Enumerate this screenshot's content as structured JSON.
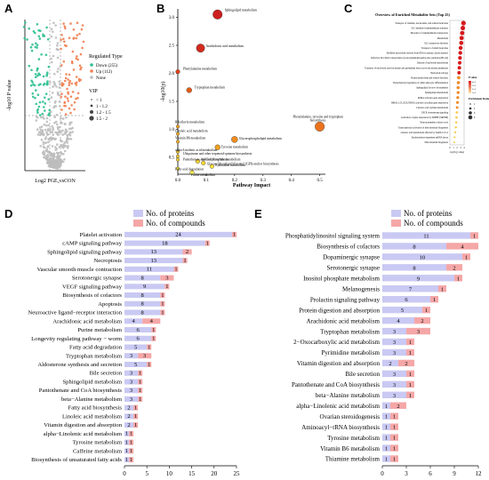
{
  "labels": {
    "a": "A",
    "b": "B",
    "c": "C",
    "d": "D",
    "e": "E"
  },
  "chart_data": [
    {
      "panel": "A",
      "type": "scatter",
      "xlabel": "Log2 PGE₂vsCON",
      "ylabel": "-log10 P value",
      "legend_title": "Regulated Type",
      "legend_items": [
        "Down (255)",
        "Up (112)",
        "None"
      ],
      "vip_title": "VIP",
      "vip_items": [
        "< 1",
        "1 - 1.2",
        "1.2 - 1.5",
        "1.5 - 2"
      ],
      "colors": {
        "down": "#2ebf91",
        "up": "#f07f50",
        "none": "#bdbdbd"
      }
    },
    {
      "panel": "B",
      "type": "scatter",
      "xlabel": "Pathway Impact",
      "ylabel": "-log10(p)",
      "xticks": [
        "0.0",
        "0.1",
        "0.2",
        "0.3",
        "0.4",
        "0.5"
      ],
      "yticks": [
        "0.5",
        "1.0",
        "1.5",
        "2.0",
        "2.5",
        "3.0"
      ],
      "xlim": [
        0,
        0.52
      ],
      "ylim": [
        0.2,
        3.15
      ],
      "points": [
        {
          "label": "Sphingolipid metabolism",
          "x": 0.14,
          "y": 3.05,
          "size": 9,
          "color": "#cc1f1f"
        },
        {
          "label": "Arachidonic acid metabolism",
          "x": 0.08,
          "y": 2.45,
          "size": 8,
          "color": "#d22a1f"
        },
        {
          "label": "Phenylalanine metabolism",
          "x": 0.0,
          "y": 2.03,
          "size": 4,
          "color": "#e2441a"
        },
        {
          "label": "Tryptophan metabolism",
          "x": 0.04,
          "y": 1.7,
          "size": 5,
          "color": "#e35a17"
        },
        {
          "label": "Riboflavin metabolism",
          "x": 0.0,
          "y": 1.05,
          "size": 3,
          "color": "#f1a11c"
        },
        {
          "label": "Linoleic acid metabolism",
          "x": 0.0,
          "y": 0.92,
          "size": 3,
          "color": "#f3ad1e"
        },
        {
          "label": "Vitamin B6 metabolism",
          "x": 0.0,
          "y": 0.78,
          "size": 3,
          "color": "#f3b321"
        },
        {
          "label": "Glycerophospholipid metabolism",
          "x": 0.2,
          "y": 0.82,
          "size": 6,
          "color": "#ef8c1f"
        },
        {
          "label": "Tyrosine metabolism",
          "x": 0.14,
          "y": 0.68,
          "size": 5,
          "color": "#f1a01f"
        },
        {
          "label": "Phenylalanine, tyrosine and tryptophan biosynthesis",
          "x": 0.5,
          "y": 1.05,
          "size": 9,
          "color": "#ea731d"
        },
        {
          "label": "alpha-Linolenic acid metabolism",
          "x": 0.0,
          "y": 0.6,
          "size": 3,
          "color": "#f7c52a"
        },
        {
          "label": "Ubiquinone and other terpenoid-quinone biosynthesis",
          "x": 0.0,
          "y": 0.52,
          "size": 3,
          "color": "#f8cb2e"
        },
        {
          "label": "Pantothenate and CoA biosynthesis",
          "x": 0.0,
          "y": 0.46,
          "size": 3,
          "color": "#f8cf30"
        },
        {
          "label": "Inositol phosphate metabolism",
          "x": 0.07,
          "y": 0.43,
          "size": 4,
          "color": "#f9d332"
        },
        {
          "label": "Glycosylphosphatidylinositol (GPI)-anchor biosynthesis",
          "x": 0.09,
          "y": 0.4,
          "size": 4,
          "color": "#fad735"
        },
        {
          "label": "Pyrimidine metabolism",
          "x": 0.12,
          "y": 0.34,
          "size": 4,
          "color": "#fbe03c"
        },
        {
          "label": "Fatty acid degradation",
          "x": 0.0,
          "y": 0.3,
          "size": 3,
          "color": "#fbe440"
        },
        {
          "label": "Purine metabolism",
          "x": 0.05,
          "y": 0.23,
          "size": 4,
          "color": "#fcec55"
        }
      ]
    },
    {
      "panel": "C",
      "type": "scatter",
      "title": "Overview of Enriched Metabolite Sets (Top 25)",
      "legend_p": "P value",
      "legend_p_items": [
        "4e-2",
        "3e-2",
        "2e-2",
        "1e-2"
      ],
      "legend_ratio": "Enrichment Ratio",
      "legend_ratio_items": [
        "2",
        "4",
        "6",
        "8"
      ],
      "xlabel": "log10 (p value)",
      "xticks": [
        "0",
        "1",
        "2",
        "3",
        "4"
      ],
      "categories": [
        "Transport of vitamins, nucleosides, and related molecules",
        "SLC-mediated transmembrane transport",
        "Disorders of transmembrane transporters",
        "Metabolism",
        "SLC transporter disorders",
        "Transport of small molecules",
        "Modified nucleotides derived from RNA in urinary cancer markers",
        "Defective SLC29A3 causes histiocytosis-lymphadenopathy plus syndrome (HLAS)",
        "Disease of nucleotide metabolism",
        "Transport of nucleotide and free purine and pyrimidine bases across the plasma membrane",
        "Nucleotide salvage",
        "Purine metabolism and related disorders",
        "Transcriptional regulation of white adipocyte differentiation",
        "Sphingolipid de novo biosynthesis",
        "Sphingolipid metabolism",
        "RORA activates gene expression",
        "BMAL1:CLOCK,NPAS2 activates circadian gene expression",
        "Linoleic acid oxylipin metabolism",
        "GPCR downstream signaling",
        "Activation of gene expression by SREBF (SREBP)",
        "Neurotransmitter release cycle",
        "Transcriptional activation of mitochondrial biogenesis",
        "Linoleic acid metabolism affected by SARS-CoV-2",
        "Deadenylation-dependent mRNA decay",
        "Mitochondrial biogenesis"
      ],
      "values": [
        4.3,
        4.1,
        3.9,
        3.7,
        3.6,
        3.4,
        3.3,
        3.2,
        3.1,
        3.0,
        2.9,
        2.8,
        2.7,
        2.6,
        2.6,
        2.5,
        2.4,
        2.3,
        2.2,
        2.1,
        2.0,
        1.9,
        1.7,
        1.5,
        1.4
      ]
    },
    {
      "panel": "D",
      "type": "bar",
      "orientation": "horizontal",
      "stacked": true,
      "series": [
        {
          "name": "No. of proteins"
        },
        {
          "name": "No. of compounds"
        }
      ],
      "xticks": [
        "0",
        "5",
        "10",
        "15",
        "20",
        "25"
      ],
      "xlim": [
        0,
        25
      ],
      "categories": [
        "Platelet activation",
        "cAMP signaling pathway",
        "Sphingolipid signaling pathway",
        "Necroptosis",
        "Vascular smooth muscle contraction",
        "Serotonergic synapse",
        "VEGF signaling pathway",
        "Biosynthesis of cofactors",
        "Apoptosis",
        "Neuroactive ligand−receptor interaction",
        "Arachidonic acid metabolism",
        "Purine metabolism",
        "Longevity regulating pathway − worm",
        "Fatty acid degradation",
        "Tryptophan metabolism",
        "Aldosterone synthesis and secretion",
        "Bile secretion",
        "Sphingolipid metabolism",
        "Pantothenate and CoA biosynthesis",
        "beta−Alanine metabolism",
        "Fatty acid biosynthesis",
        "Linoleic acid metabolism",
        "Vitamin digestion and absorption",
        "alpha−Linolenic acid metabolism",
        "Tyrosine metabolism",
        "Caffeine metabolism",
        "Biosynthesis of unsaturated fatty acids"
      ],
      "proteins": [
        24,
        18,
        13,
        13,
        11,
        8,
        9,
        8,
        8,
        8,
        4,
        6,
        6,
        5,
        3,
        5,
        3,
        3,
        3,
        3,
        2,
        2,
        2,
        1,
        1,
        1,
        1
      ],
      "compounds": [
        1,
        1,
        2,
        1,
        1,
        3,
        1,
        1,
        1,
        1,
        4,
        1,
        1,
        1,
        3,
        1,
        1,
        1,
        1,
        1,
        1,
        1,
        1,
        1,
        1,
        1,
        1
      ]
    },
    {
      "panel": "E",
      "type": "bar",
      "orientation": "horizontal",
      "stacked": true,
      "series": [
        {
          "name": "No. of proteins"
        },
        {
          "name": "No. of compounds"
        }
      ],
      "xticks": [
        "0",
        "3",
        "6",
        "9",
        "12"
      ],
      "xlim": [
        0,
        12
      ],
      "categories": [
        "Phosphatidylinositol signaling system",
        "Biosynthesis of cofactors",
        "Dopaminergic synapse",
        "Serotonergic synapse",
        "Inositol phosphate metabolism",
        "Melanogenesis",
        "Prolactin signaling pathway",
        "Protein digestion and absorption",
        "Arachidonic acid metabolism",
        "Tryptophan metabolism",
        "2−Oxocarboxylic acid metabolism",
        "Pyrimidine metabolism",
        "Vitamin digestion and absorption",
        "Bile secretion",
        "Pantothenate and CoA biosynthesis",
        "beta−Alanine metabolism",
        "alpha−Linolenic acid metabolism",
        "Ovarian steroidogenesis",
        "Aminoacyl−tRNA biosynthesis",
        "Tyrosine metabolism",
        "Vitamin B6 metabolism",
        "Thiamine metabolism"
      ],
      "proteins": [
        11,
        8,
        10,
        8,
        9,
        7,
        6,
        5,
        4,
        3,
        3,
        3,
        2,
        3,
        3,
        3,
        1,
        1,
        1,
        1,
        1,
        1
      ],
      "compounds": [
        1,
        4,
        1,
        2,
        1,
        1,
        1,
        1,
        2,
        3,
        1,
        1,
        2,
        1,
        1,
        1,
        2,
        1,
        1,
        1,
        1,
        1
      ]
    }
  ]
}
